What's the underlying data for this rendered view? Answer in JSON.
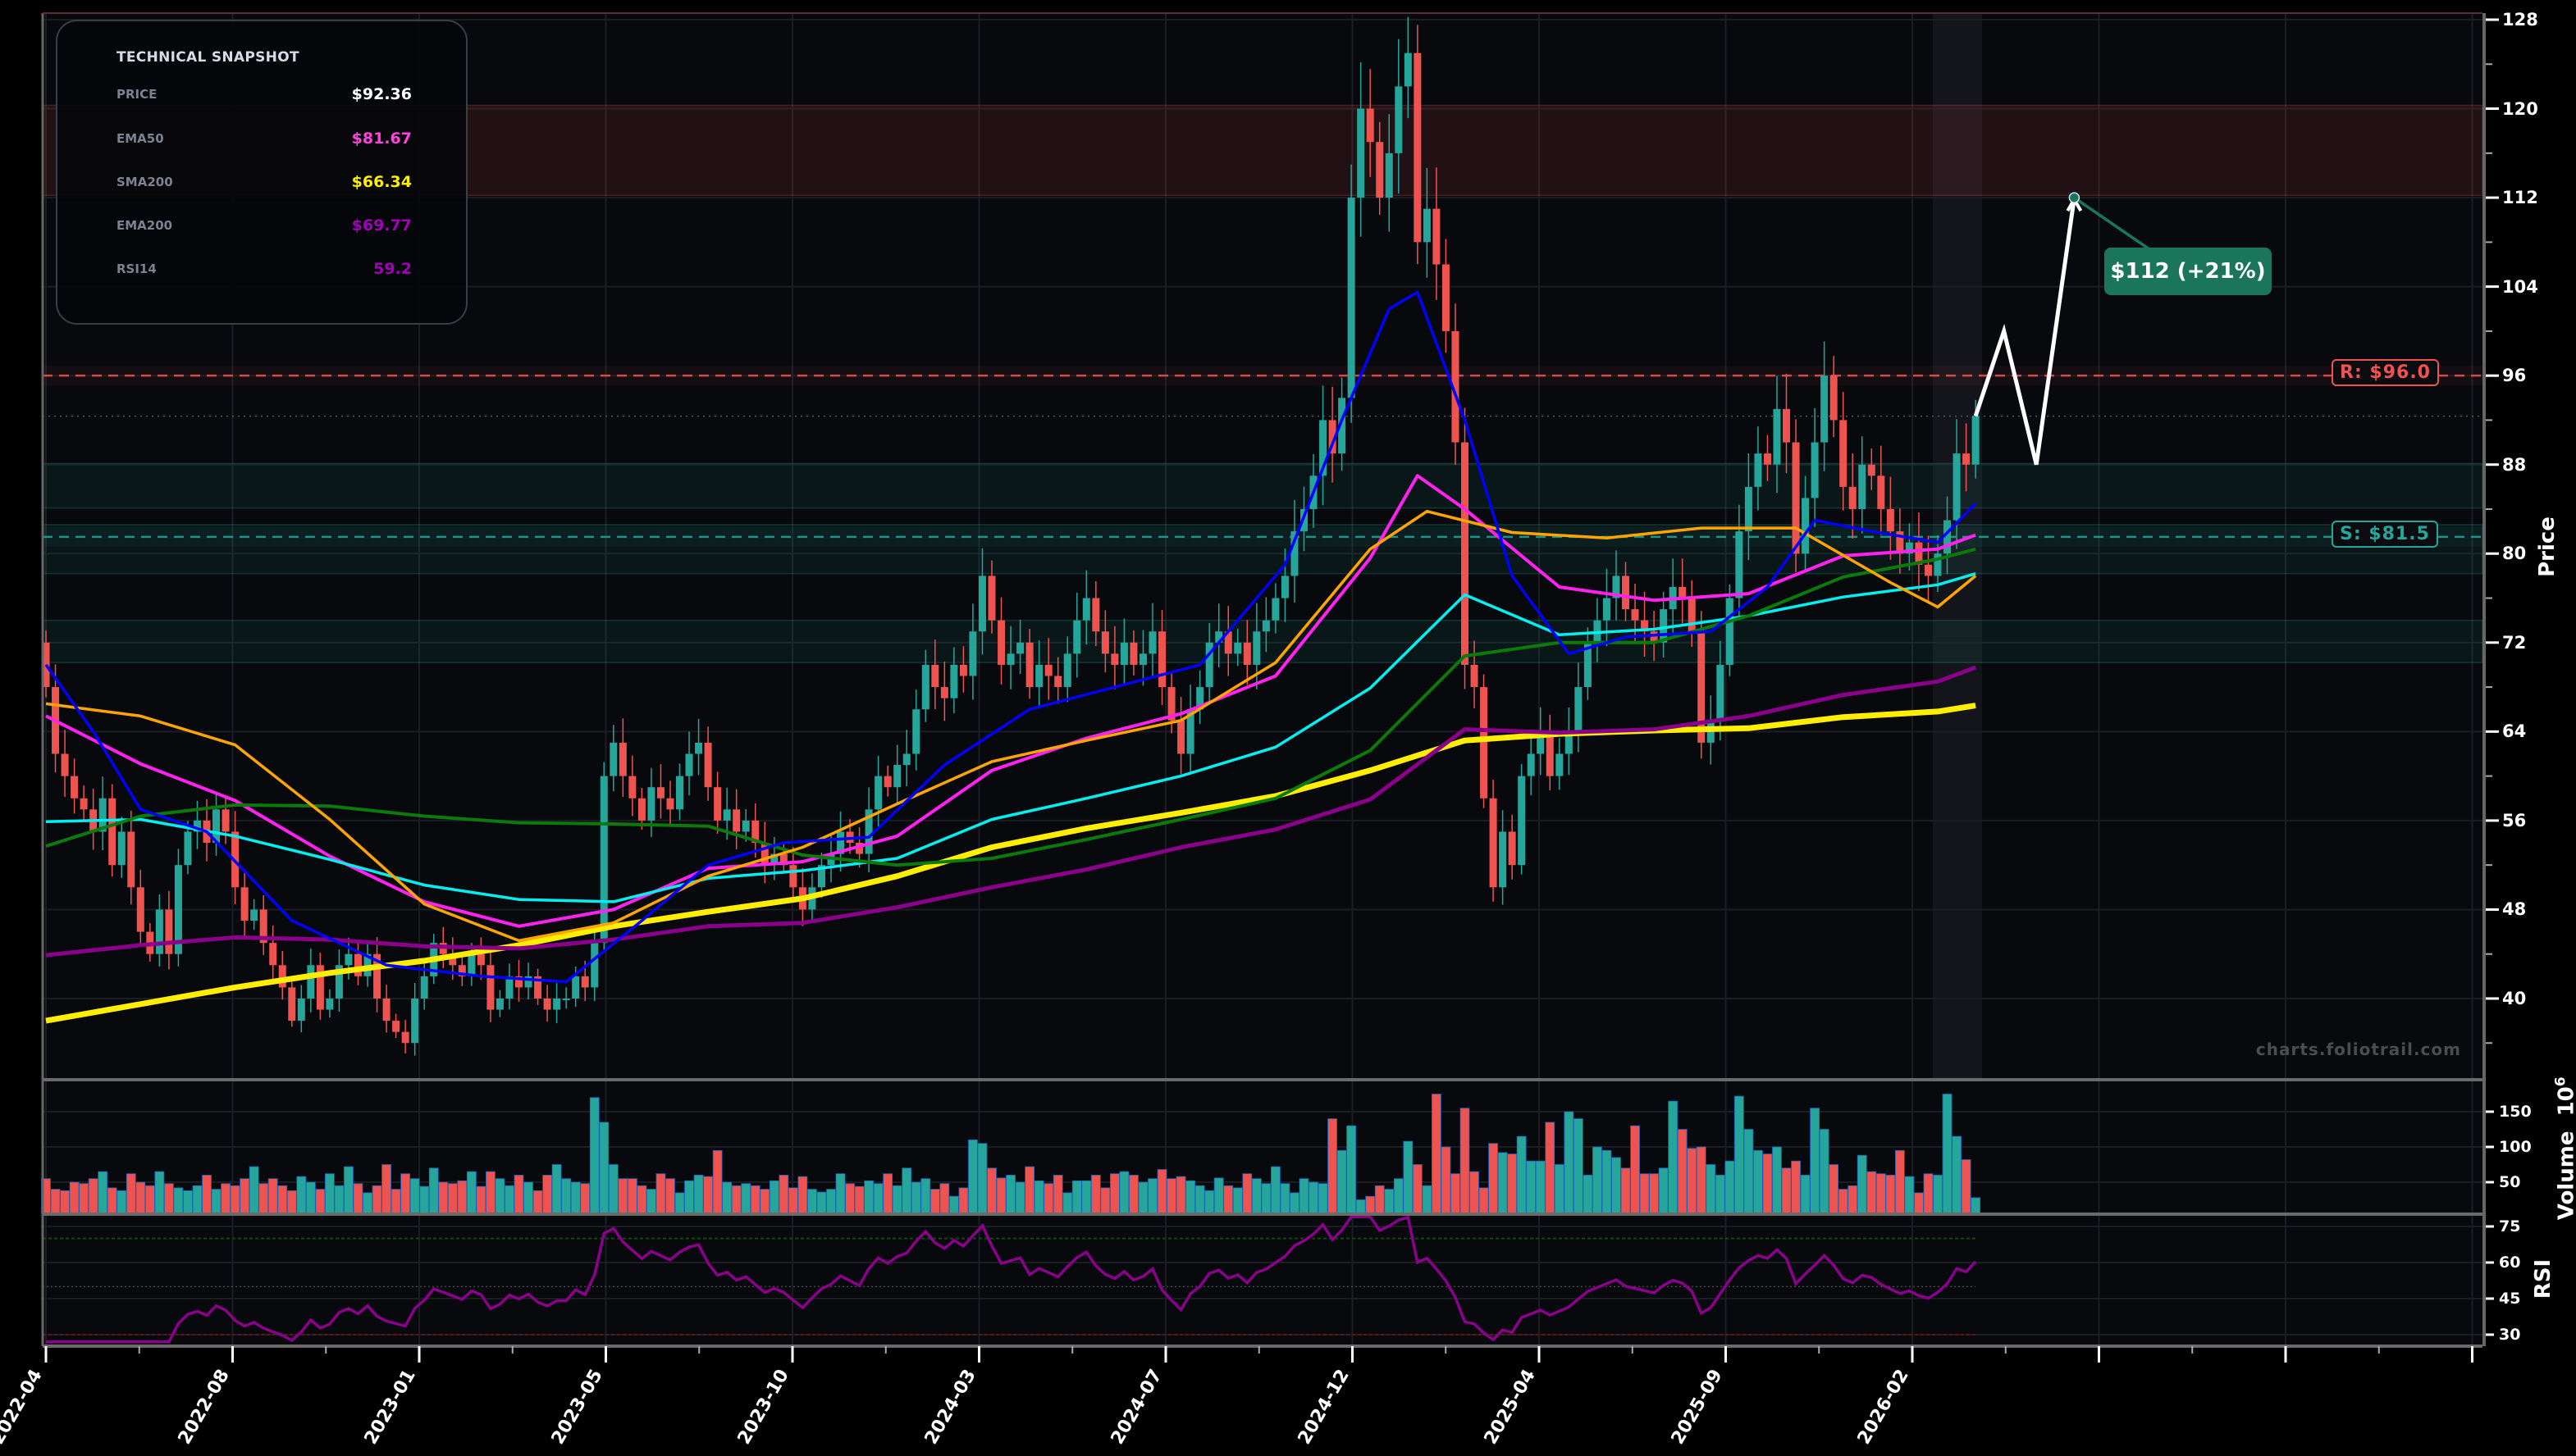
{
  "snapshot": {
    "title": "TECHNICAL SNAPSHOT",
    "rows": [
      {
        "label": "PRICE",
        "value": "$92.36",
        "color": "#ffffff"
      },
      {
        "label": "EMA50",
        "value": "$81.67",
        "color": "#ff44dd"
      },
      {
        "label": "SMA200",
        "value": "$66.34",
        "color": "#ffee00"
      },
      {
        "label": "EMA200",
        "value": "$69.77",
        "color": "#a000b8"
      },
      {
        "label": "RSI14",
        "value": "59.2",
        "color": "#a000b8"
      }
    ]
  },
  "watermark": "charts.foliotrail.com",
  "chart_data": {
    "type": "candlestick",
    "start": "2022-04-04",
    "interval": "1W",
    "colors": {
      "up": "#26a69a",
      "down": "#ef5350"
    },
    "closes": [
      68,
      62,
      60,
      58,
      57,
      55,
      58,
      52,
      55,
      50,
      46,
      44,
      48,
      44,
      52,
      55,
      56,
      54,
      57,
      55,
      50,
      47,
      48,
      45,
      43,
      41,
      38,
      40,
      43,
      39,
      40,
      43,
      44,
      42,
      44,
      40,
      38,
      37,
      36,
      40,
      42,
      45,
      44,
      43,
      42,
      44,
      43,
      39,
      40,
      42,
      41,
      42,
      40,
      39,
      40,
      40,
      42,
      41,
      45,
      60,
      63,
      60,
      58,
      56,
      59,
      58,
      57,
      60,
      62,
      63,
      59,
      56,
      57,
      55,
      56,
      54,
      52,
      53,
      52,
      50,
      48,
      50,
      52,
      53,
      55,
      54,
      53,
      57,
      60,
      59,
      61,
      62,
      66,
      70,
      68,
      67,
      70,
      69,
      73,
      78,
      74,
      70,
      71,
      72,
      68,
      70,
      69,
      68,
      71,
      74,
      76,
      73,
      71,
      70,
      72,
      70,
      71,
      73,
      68,
      65,
      62,
      66,
      68,
      72,
      73,
      71,
      72,
      70,
      73,
      74,
      76,
      78,
      82,
      84,
      87,
      92,
      89,
      94,
      112,
      120,
      117,
      112,
      116,
      122,
      125,
      108,
      111,
      106,
      100,
      90,
      70,
      68,
      58,
      50,
      55,
      52,
      60,
      62,
      64,
      60,
      62,
      64,
      68,
      72,
      74,
      76,
      78,
      75,
      74,
      73,
      72,
      75,
      77,
      76,
      73,
      63,
      65,
      70,
      76,
      82,
      86,
      89,
      88,
      93,
      90,
      80,
      85,
      90,
      96,
      92,
      86,
      84,
      88,
      87,
      84,
      82,
      80,
      81,
      79,
      78,
      80,
      83,
      89,
      88,
      92.36
    ],
    "volume": [
      55,
      40,
      38,
      50,
      48,
      55,
      65,
      42,
      38,
      62,
      50,
      45,
      65,
      48,
      42,
      38,
      45,
      60,
      40,
      48,
      45,
      55,
      72,
      48,
      55,
      45,
      38,
      58,
      50,
      40,
      62,
      45,
      72,
      48,
      35,
      45,
      75,
      40,
      62,
      55,
      44,
      70,
      50,
      48,
      52,
      65,
      44,
      65,
      55,
      45,
      60,
      50,
      38,
      60,
      75,
      55,
      50,
      48,
      170,
      135,
      75,
      55,
      55,
      45,
      40,
      62,
      55,
      35,
      52,
      60,
      58,
      95,
      50,
      45,
      48,
      45,
      40,
      52,
      60,
      42,
      58,
      40,
      36,
      40,
      62,
      48,
      44,
      52,
      48,
      62,
      45,
      70,
      50,
      55,
      40,
      48,
      30,
      42,
      110,
      105,
      70,
      56,
      60,
      50,
      72,
      52,
      48,
      60,
      35,
      52,
      52,
      60,
      42,
      62,
      65,
      60,
      50,
      55,
      68,
      55,
      58,
      52,
      45,
      38,
      56,
      45,
      42,
      62,
      55,
      48,
      72,
      48,
      35,
      55,
      50,
      48,
      140,
      95,
      130,
      25,
      30,
      45,
      40,
      55,
      108,
      75,
      45,
      175,
      100,
      62,
      155,
      65,
      42,
      105,
      92,
      90,
      115,
      80,
      80,
      135,
      75,
      150,
      140,
      60,
      100,
      95,
      85,
      70,
      130,
      62,
      62,
      70,
      165,
      125,
      98,
      100,
      75,
      60,
      80,
      172,
      125,
      95,
      90,
      100,
      70,
      80,
      60,
      155,
      125,
      75,
      40,
      45,
      88,
      65,
      62,
      60,
      95,
      58,
      35,
      62,
      60,
      175,
      115,
      82,
      28
    ],
    "indicators": [
      {
        "name": "EMA50",
        "color": "#ff22ee",
        "width": 4,
        "points": [
          [
            "2022-04-04",
            65.4
          ],
          [
            "2022-06-13",
            61.1
          ],
          [
            "2022-08-22",
            57.8
          ],
          [
            "2022-10-31",
            52.8
          ],
          [
            "2023-01-09",
            48.7
          ],
          [
            "2023-03-20",
            46.5
          ],
          [
            "2023-05-29",
            48
          ],
          [
            "2023-08-07",
            51.7
          ],
          [
            "2023-10-16",
            52.3
          ],
          [
            "2023-12-25",
            54.6
          ],
          [
            "2024-03-04",
            60.5
          ],
          [
            "2024-05-13",
            63.4
          ],
          [
            "2024-07-22",
            65.6
          ],
          [
            "2024-09-30",
            69
          ],
          [
            "2024-12-09",
            79.6
          ],
          [
            "2025-01-13",
            87
          ],
          [
            "2025-02-17",
            84
          ],
          [
            "2025-04-28",
            77
          ],
          [
            "2025-07-07",
            75.8
          ],
          [
            "2025-09-15",
            76.4
          ],
          [
            "2025-11-24",
            79.8
          ],
          [
            "2026-02-02",
            80.4
          ],
          [
            "2026-03-02",
            81.67
          ]
        ]
      },
      {
        "name": "SMA200",
        "color": "#ffee00",
        "width": 7,
        "points": [
          [
            "2022-04-04",
            38
          ],
          [
            "2022-06-13",
            39.5
          ],
          [
            "2022-08-22",
            41
          ],
          [
            "2022-10-31",
            42.3
          ],
          [
            "2023-01-09",
            43.4
          ],
          [
            "2023-03-20",
            44.8
          ],
          [
            "2023-05-29",
            46.5
          ],
          [
            "2023-08-07",
            47.8
          ],
          [
            "2023-10-16",
            49
          ],
          [
            "2023-12-25",
            51
          ],
          [
            "2024-03-04",
            53.6
          ],
          [
            "2024-05-13",
            55.3
          ],
          [
            "2024-07-22",
            56.7
          ],
          [
            "2024-09-30",
            58.2
          ],
          [
            "2024-12-09",
            60.5
          ],
          [
            "2025-02-17",
            63.2
          ],
          [
            "2025-04-28",
            63.8
          ],
          [
            "2025-07-07",
            64.1
          ],
          [
            "2025-09-15",
            64.3
          ],
          [
            "2025-11-24",
            65.3
          ],
          [
            "2026-02-02",
            65.8
          ],
          [
            "2026-03-02",
            66.34
          ]
        ]
      },
      {
        "name": "EMA200",
        "color": "#8a008a",
        "width": 5,
        "points": [
          [
            "2022-04-04",
            43.9
          ],
          [
            "2022-06-13",
            44.8
          ],
          [
            "2022-08-22",
            45.5
          ],
          [
            "2022-10-31",
            45.3
          ],
          [
            "2023-01-09",
            44.7
          ],
          [
            "2023-03-20",
            44.5
          ],
          [
            "2023-05-29",
            45.3
          ],
          [
            "2023-08-07",
            46.5
          ],
          [
            "2023-10-16",
            46.8
          ],
          [
            "2023-12-25",
            48.2
          ],
          [
            "2024-03-04",
            50
          ],
          [
            "2024-05-13",
            51.6
          ],
          [
            "2024-07-22",
            53.6
          ],
          [
            "2024-09-30",
            55.2
          ],
          [
            "2024-12-09",
            57.9
          ],
          [
            "2025-02-17",
            64.2
          ],
          [
            "2025-04-28",
            63.9
          ],
          [
            "2025-07-07",
            64.2
          ],
          [
            "2025-09-15",
            65.4
          ],
          [
            "2025-11-24",
            67.3
          ],
          [
            "2026-02-02",
            68.5
          ],
          [
            "2026-03-02",
            69.77
          ]
        ]
      },
      {
        "name": "",
        "color": "#00f0f0",
        "width": 3.5,
        "points": [
          [
            "2022-04-04",
            55.9
          ],
          [
            "2022-06-13",
            56.1
          ],
          [
            "2022-08-22",
            54.6
          ],
          [
            "2022-10-31",
            52.5
          ],
          [
            "2023-01-09",
            50.2
          ],
          [
            "2023-03-20",
            48.9
          ],
          [
            "2023-05-29",
            48.7
          ],
          [
            "2023-08-07",
            50.8
          ],
          [
            "2023-10-16",
            51.5
          ],
          [
            "2023-12-25",
            52.6
          ],
          [
            "2024-03-04",
            56.1
          ],
          [
            "2024-05-13",
            58
          ],
          [
            "2024-07-22",
            60
          ],
          [
            "2024-09-30",
            62.6
          ],
          [
            "2024-12-09",
            67.9
          ],
          [
            "2025-02-17",
            76.3
          ],
          [
            "2025-04-28",
            72.7
          ],
          [
            "2025-07-07",
            73.2
          ],
          [
            "2025-09-15",
            74.4
          ],
          [
            "2025-11-24",
            76.1
          ],
          [
            "2026-02-02",
            77.2
          ],
          [
            "2026-03-02",
            78.2
          ]
        ]
      },
      {
        "name": "",
        "color": "#0a7a0a",
        "width": 4,
        "points": [
          [
            "2022-04-04",
            53.7
          ],
          [
            "2022-06-13",
            56.4
          ],
          [
            "2022-08-22",
            57.4
          ],
          [
            "2022-10-31",
            57.3
          ],
          [
            "2023-01-09",
            56.4
          ],
          [
            "2023-03-20",
            55.8
          ],
          [
            "2023-05-29",
            55.7
          ],
          [
            "2023-08-07",
            55.5
          ],
          [
            "2023-10-16",
            52.9
          ],
          [
            "2023-12-25",
            52
          ],
          [
            "2024-03-04",
            52.6
          ],
          [
            "2024-05-13",
            54.3
          ],
          [
            "2024-07-22",
            56.1
          ],
          [
            "2024-09-30",
            58
          ],
          [
            "2024-12-09",
            62.3
          ],
          [
            "2025-02-17",
            70.8
          ],
          [
            "2025-04-28",
            72
          ],
          [
            "2025-07-07",
            72
          ],
          [
            "2025-09-15",
            74.4
          ],
          [
            "2025-11-24",
            77.9
          ],
          [
            "2026-02-02",
            79.5
          ],
          [
            "2026-03-02",
            80.4
          ]
        ]
      },
      {
        "name": "",
        "color": "#ffa500",
        "width": 3.5,
        "points": [
          [
            "2022-04-04",
            66.5
          ],
          [
            "2022-06-13",
            65.4
          ],
          [
            "2022-08-22",
            62.8
          ],
          [
            "2022-10-31",
            56.1
          ],
          [
            "2023-01-09",
            48.5
          ],
          [
            "2023-03-20",
            45.2
          ],
          [
            "2023-05-29",
            46.8
          ],
          [
            "2023-08-07",
            51
          ],
          [
            "2023-10-16",
            53.6
          ],
          [
            "2023-12-25",
            57.5
          ],
          [
            "2024-03-04",
            61.3
          ],
          [
            "2024-05-13",
            63.2
          ],
          [
            "2024-07-22",
            65
          ],
          [
            "2024-09-30",
            70.2
          ],
          [
            "2024-12-09",
            80.4
          ],
          [
            "2025-01-20",
            83.8
          ],
          [
            "2025-03-24",
            81.9
          ],
          [
            "2025-06-02",
            81.4
          ],
          [
            "2025-08-11",
            82.3
          ],
          [
            "2025-10-20",
            82.3
          ],
          [
            "2025-12-29",
            77.4
          ],
          [
            "2026-02-02",
            75.2
          ],
          [
            "2026-03-02",
            78
          ]
        ]
      },
      {
        "name": "",
        "color": "#0000ff",
        "width": 3.5,
        "points": [
          [
            "2022-04-04",
            70
          ],
          [
            "2022-05-09",
            64
          ],
          [
            "2022-06-13",
            57
          ],
          [
            "2022-08-01",
            55
          ],
          [
            "2022-10-03",
            47
          ],
          [
            "2022-12-12",
            43
          ],
          [
            "2023-02-20",
            42
          ],
          [
            "2023-04-24",
            41.5
          ],
          [
            "2023-06-19",
            47
          ],
          [
            "2023-08-07",
            52
          ],
          [
            "2023-10-02",
            54
          ],
          [
            "2023-12-04",
            54.5
          ],
          [
            "2024-01-29",
            61
          ],
          [
            "2024-04-01",
            66
          ],
          [
            "2024-06-03",
            68
          ],
          [
            "2024-08-05",
            70
          ],
          [
            "2024-10-07",
            79
          ],
          [
            "2024-11-18",
            92
          ],
          [
            "2024-12-23",
            102
          ],
          [
            "2025-01-13",
            103.5
          ],
          [
            "2025-02-17",
            92
          ],
          [
            "2025-03-24",
            78
          ],
          [
            "2025-05-05",
            71
          ],
          [
            "2025-06-16",
            72.5
          ],
          [
            "2025-08-18",
            73
          ],
          [
            "2025-09-29",
            77
          ],
          [
            "2025-11-03",
            83
          ],
          [
            "2025-12-15",
            82
          ],
          [
            "2026-02-02",
            81
          ],
          [
            "2026-03-02",
            84.5
          ]
        ]
      }
    ],
    "price_axis": {
      "label": "Price",
      "ticks": [
        128,
        120,
        112,
        104,
        96,
        88,
        80,
        72,
        64,
        56,
        48,
        40
      ],
      "range": [
        32.8,
        128.6
      ]
    },
    "volume_axis": {
      "label": "Volume",
      "unit": "10",
      "unit_exp": "6",
      "ticks": [
        150,
        100,
        50
      ]
    },
    "rsi": {
      "label": "RSI",
      "ticks": [
        75,
        60,
        45,
        30
      ],
      "overbought": 70,
      "oversold": 30,
      "mid": 50,
      "color": "#8a008a"
    },
    "x_tick_labels": [
      "2022-04",
      "2022-08",
      "2023-01",
      "2023-05",
      "2023-10",
      "2024-03",
      "2024-07",
      "2024-12",
      "2025-04",
      "2025-09",
      "2026-02"
    ],
    "levels": [
      {
        "label": "R: $96.0",
        "price": 96.0,
        "color": "#ef5350"
      },
      {
        "label": "S: $81.5",
        "price": 81.5,
        "color": "#26a69a"
      }
    ],
    "zones": [
      {
        "type": "resistance",
        "from": 112.2,
        "to": 120.3,
        "color": "#ef5350"
      },
      {
        "type": "support",
        "from": 84.1,
        "to": 88.1,
        "color": "#26a69a"
      },
      {
        "type": "support",
        "from": 78.2,
        "to": 82.6,
        "color": "#26a69a"
      },
      {
        "type": "support",
        "from": 70.2,
        "to": 74.0,
        "color": "#26a69a"
      }
    ],
    "current_price": 92.36,
    "projection": {
      "points": [
        [
          "2026-03-02",
          92.36
        ],
        [
          "2026-03-23",
          100
        ],
        [
          "2026-04-16",
          88
        ],
        [
          "2026-05-14",
          112
        ]
      ],
      "label": "$112 (+21%)"
    }
  }
}
